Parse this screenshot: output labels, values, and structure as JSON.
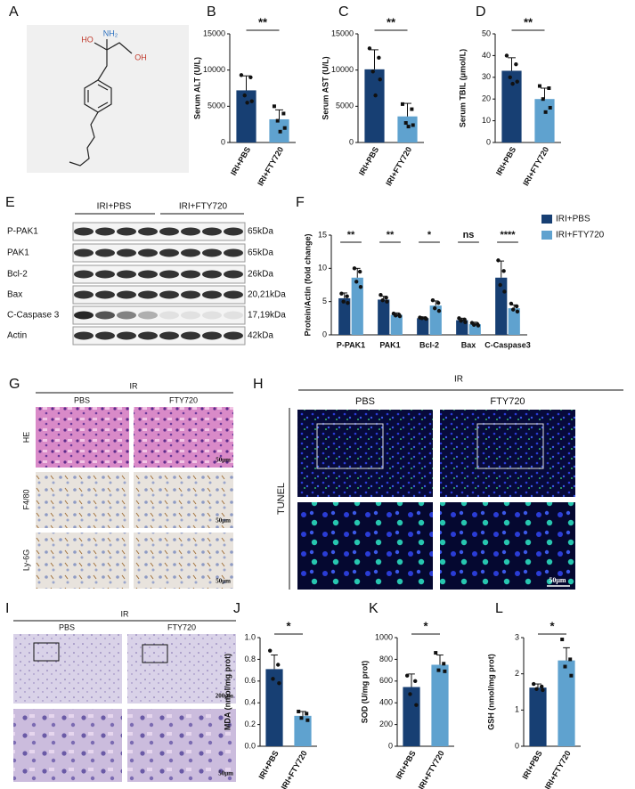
{
  "panel_labels": [
    "A",
    "B",
    "C",
    "D",
    "E",
    "F",
    "G",
    "H",
    "I",
    "J",
    "K",
    "L"
  ],
  "structure": {
    "atoms": [
      "HO",
      "NH₂",
      "OH"
    ]
  },
  "blot": {
    "groups": [
      "IRI+PBS",
      "IRI+FTY720"
    ],
    "rows": [
      {
        "protein": "P-PAK1",
        "size": "65kDa"
      },
      {
        "protein": "PAK1",
        "size": "65kDa"
      },
      {
        "protein": "Bcl-2",
        "size": "26kDa"
      },
      {
        "protein": "Bax",
        "size": "20,21kDa"
      },
      {
        "protein": "C-Caspase 3",
        "size": "17,19kDa"
      },
      {
        "protein": "Actin",
        "size": "42kDa"
      }
    ]
  },
  "histology": {
    "header": "IR",
    "columns": [
      "PBS",
      "FTY720"
    ],
    "rows": [
      "HE",
      "F4/80",
      "Ly-6G"
    ],
    "scale": "50μm"
  },
  "tunel": {
    "header": "IR",
    "columns": [
      "PBS",
      "FTY720"
    ],
    "row": "TUNEL",
    "scale": "50μm"
  },
  "overview": {
    "header": "IR",
    "columns": [
      "PBS",
      "FTY720"
    ],
    "scales": [
      "200μm",
      "50μm"
    ]
  },
  "chart_data": [
    {
      "type": "bar",
      "ylabel": "Serum ALT (U/L)",
      "categories": [
        "IRI+PBS",
        "IRI+FTY720"
      ],
      "colors": [
        "#173f73",
        "#5fa2cf"
      ],
      "values": [
        7200,
        3200
      ],
      "errors": [
        2000,
        1300
      ],
      "points": [
        [
          9300,
          9000,
          6500,
          5700,
          5500
        ],
        [
          5000,
          4000,
          3000,
          2000,
          1500
        ]
      ],
      "ylim": [
        0,
        15000
      ],
      "yticks": [
        0,
        5000,
        10000,
        15000
      ],
      "annotations": [
        "**"
      ]
    },
    {
      "type": "bar",
      "ylabel": "Serum AST (U/L)",
      "categories": [
        "IRI+PBS",
        "IRI+FTY720"
      ],
      "colors": [
        "#173f73",
        "#5fa2cf"
      ],
      "values": [
        10100,
        3600
      ],
      "errors": [
        2700,
        1800
      ],
      "points": [
        [
          13000,
          11700,
          9800,
          8700,
          6500
        ],
        [
          5300,
          4600,
          2700,
          2400,
          2200
        ]
      ],
      "ylim": [
        0,
        15000
      ],
      "yticks": [
        0,
        5000,
        10000,
        15000
      ],
      "annotations": [
        "**"
      ]
    },
    {
      "type": "bar",
      "ylabel": "Serum TBIL (μmol/L)",
      "categories": [
        "IRI+PBS",
        "IRI+FTY720"
      ],
      "colors": [
        "#173f73",
        "#5fa2cf"
      ],
      "values": [
        33,
        20
      ],
      "errors": [
        6,
        5
      ],
      "points": [
        [
          40,
          36,
          30,
          28,
          27
        ],
        [
          26,
          25,
          20,
          16,
          14
        ]
      ],
      "ylim": [
        0,
        50
      ],
      "yticks": [
        0,
        10,
        20,
        30,
        40,
        50
      ],
      "annotations": [
        "**"
      ]
    },
    {
      "type": "grouped_bar",
      "ylabel": "Protein/Actin (fold change)",
      "categories": [
        "P-PAK1",
        "PAK1",
        "Bcl-2",
        "Bax",
        "C-Caspase3"
      ],
      "series": [
        {
          "name": "IRI+PBS",
          "color": "#173f73",
          "values": [
            5.5,
            5.3,
            2.5,
            2.2,
            8.6
          ],
          "errors": [
            0.8,
            0.5,
            0.2,
            0.3,
            2.5
          ],
          "points": [
            [
              6.2,
              5.8,
              5.0,
              4.8
            ],
            [
              6.0,
              5.6,
              5.2,
              5.0
            ],
            [
              2.6,
              2.5,
              2.5,
              2.4
            ],
            [
              2.5,
              2.3,
              2.1,
              1.9
            ],
            [
              11.2,
              9.6,
              7.5,
              6.5
            ]
          ]
        },
        {
          "name": "IRI+FTY720",
          "color": "#5fa2cf",
          "values": [
            8.6,
            3.0,
            4.4,
            1.6,
            4.0
          ],
          "errors": [
            1.4,
            0.3,
            0.7,
            0.3,
            0.5
          ],
          "points": [
            [
              10,
              9.5,
              8.0,
              7.2
            ],
            [
              3.2,
              3.0,
              2.9,
              2.8
            ],
            [
              5.2,
              4.8,
              4.0,
              3.6
            ],
            [
              1.8,
              1.6,
              1.5,
              1.4
            ],
            [
              4.7,
              4.3,
              3.8,
              3.5
            ]
          ]
        }
      ],
      "ylim": [
        0,
        15
      ],
      "yticks": [
        0,
        5,
        10,
        15
      ],
      "annotations": [
        "**",
        "**",
        "*",
        "ns",
        "****"
      ],
      "legend": "upper right"
    },
    {
      "type": "bar",
      "ylabel": "MDA (nmol/mg prot)",
      "categories": [
        "IRI+PBS",
        "IRI+FTY720"
      ],
      "colors": [
        "#173f73",
        "#5fa2cf"
      ],
      "values": [
        0.71,
        0.28
      ],
      "errors": [
        0.13,
        0.04
      ],
      "points": [
        [
          0.88,
          0.75,
          0.62,
          0.58
        ],
        [
          0.32,
          0.3,
          0.26,
          0.24
        ]
      ],
      "ylim": [
        0,
        1
      ],
      "yticks": [
        {
          "value": 0,
          "label": "0.0"
        },
        0.2,
        0.4,
        0.6,
        0.8,
        {
          "value": 1,
          "label": "1.0"
        }
      ],
      "annotations": [
        "*"
      ]
    },
    {
      "type": "bar",
      "ylabel": "SOD (U/mg prot)",
      "categories": [
        "IRI+PBS",
        "IRI+FTY720"
      ],
      "colors": [
        "#173f73",
        "#5fa2cf"
      ],
      "values": [
        545,
        750
      ],
      "errors": [
        120,
        90
      ],
      "points": [
        [
          650,
          600,
          480,
          380
        ],
        [
          860,
          760,
          700,
          690
        ]
      ],
      "ylim": [
        0,
        1000
      ],
      "yticks": [
        0,
        200,
        400,
        600,
        800,
        1000
      ],
      "annotations": [
        "*"
      ]
    },
    {
      "type": "bar",
      "ylabel": "GSH (nmol/mg prot)",
      "categories": [
        "IRI+PBS",
        "IRI+FTY720"
      ],
      "colors": [
        "#173f73",
        "#5fa2cf"
      ],
      "values": [
        1.62,
        2.37
      ],
      "errors": [
        0.1,
        0.35
      ],
      "points": [
        [
          1.72,
          1.65,
          1.58,
          1.55
        ],
        [
          2.95,
          2.4,
          2.2,
          1.95
        ]
      ],
      "ylim": [
        0,
        3
      ],
      "yticks": [
        0,
        1,
        2,
        3
      ],
      "annotations": [
        "*"
      ]
    }
  ]
}
